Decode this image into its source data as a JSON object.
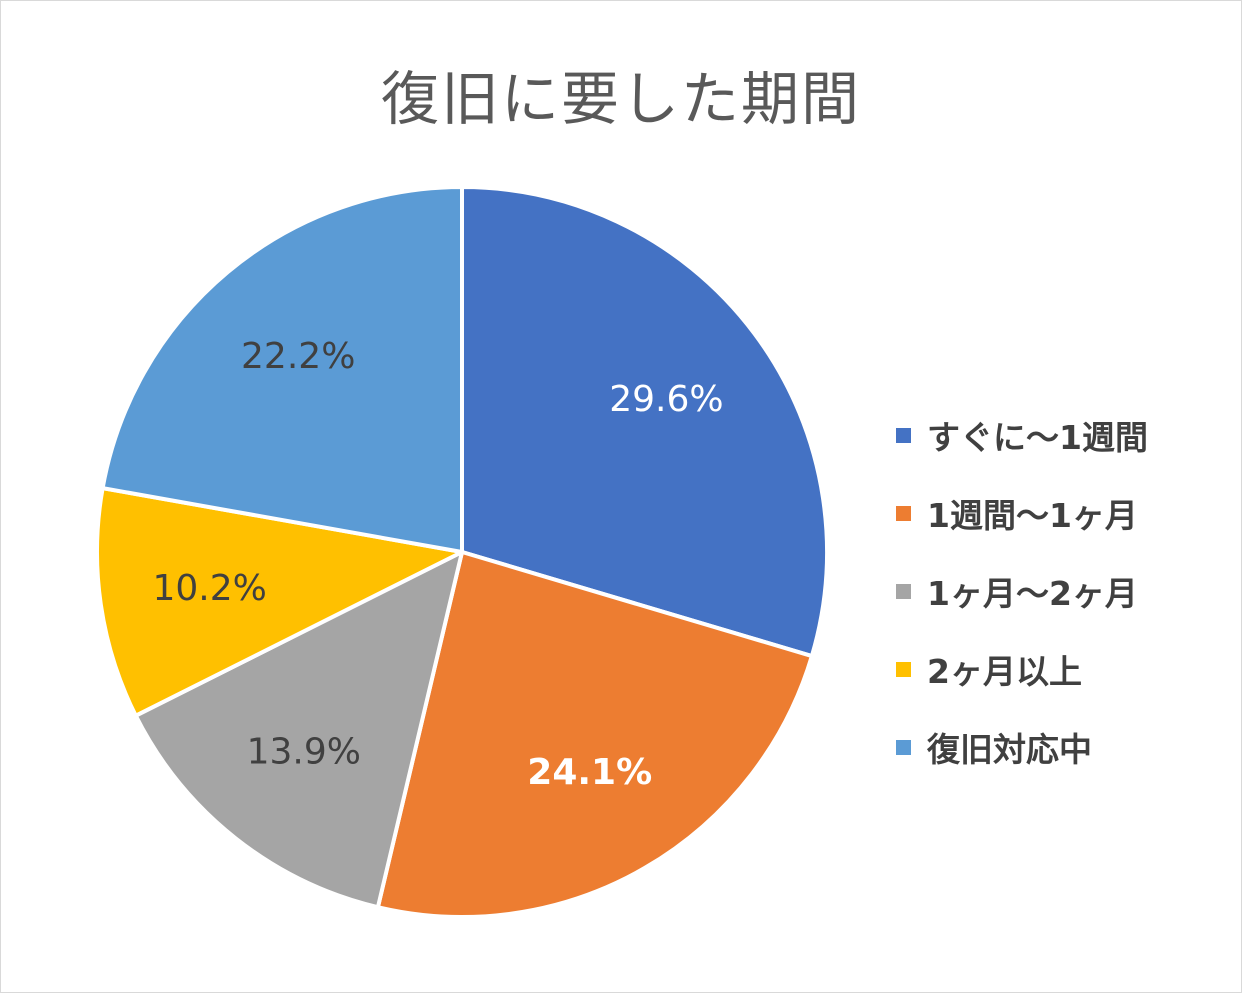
{
  "chart_data": {
    "type": "pie",
    "title": "復旧に要した期間",
    "categories": [
      "すぐに～1週間",
      "1週間～1ヶ月",
      "1ヶ月～2ヶ月",
      "2ヶ月以上",
      "復旧対応中"
    ],
    "values": [
      29.6,
      24.1,
      13.9,
      10.2,
      22.2
    ],
    "data_labels": [
      "29.6%",
      "24.1%",
      "13.9%",
      "10.2%",
      "22.2%"
    ],
    "colors": [
      "#4472C4",
      "#ED7D31",
      "#A5A5A5",
      "#FFC000",
      "#5B9BD5"
    ],
    "label_colors": [
      "#ffffff",
      "#ffffff",
      "#404040",
      "#404040",
      "#404040"
    ],
    "legend_position": "right",
    "start_angle": "12 o'clock",
    "direction": "clockwise"
  }
}
